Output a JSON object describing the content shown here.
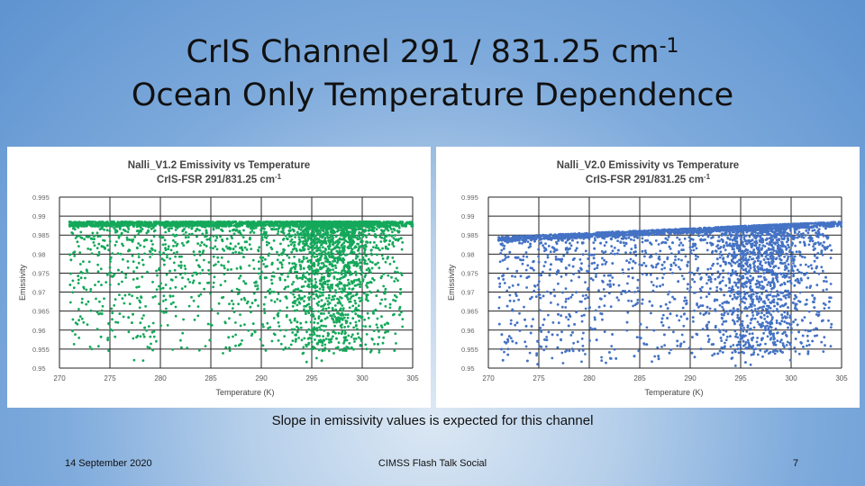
{
  "slide": {
    "title_line1": "CrIS Channel 291 / 831.25 cm",
    "title_sup": "-1",
    "title_line2": "Ocean Only Temperature Dependence",
    "caption": "Slope in emissivity values is expected for this channel",
    "footer_date": "14 September 2020",
    "footer_event": "CIMSS Flash Talk Social",
    "page_number": "7"
  },
  "chart_data": [
    {
      "type": "scatter",
      "title": "Nalli_V1.2 Emissivity vs Temperature",
      "subtitle": "CrIS-FSR 291/831.25 cm",
      "subtitle_sup": "-1",
      "xlabel": "Temperature (K)",
      "ylabel": "Emissivity",
      "xlim": [
        270,
        305
      ],
      "ylim": [
        0.95,
        0.995
      ],
      "xticks": [
        "270",
        "275",
        "280",
        "285",
        "290",
        "295",
        "300",
        "305"
      ],
      "yticks": [
        "0.95",
        "0.955",
        "0.96",
        "0.965",
        "0.97",
        "0.975",
        "0.98",
        "0.985",
        "0.99",
        "0.995"
      ],
      "grid": true,
      "color": "#14a85a",
      "series": [
        {
          "x_range": [
            271,
            305
          ],
          "y_max": 0.9885,
          "y_trend_slope_per_K": 0,
          "description": "dense band of ocean points at upper limit ~0.9885, scatter down to ~0.955, densest near 295-300 K"
        }
      ]
    },
    {
      "type": "scatter",
      "title": "Nalli_V2.0 Emissivity vs Temperature",
      "subtitle": "CrIS-FSR 291/831.25 cm",
      "subtitle_sup": "-1",
      "xlabel": "Temperature (K)",
      "ylabel": "Emissivity",
      "xlim": [
        270,
        305
      ],
      "ylim": [
        0.95,
        0.995
      ],
      "xticks": [
        "270",
        "275",
        "280",
        "285",
        "290",
        "295",
        "300",
        "305"
      ],
      "yticks": [
        "0.95",
        "0.955",
        "0.96",
        "0.965",
        "0.97",
        "0.975",
        "0.98",
        "0.985",
        "0.99",
        "0.995"
      ],
      "grid": true,
      "color": "#4472c4",
      "series": [
        {
          "x_range": [
            271,
            305
          ],
          "y_max_at_xmin": 0.9845,
          "y_max_at_xmax": 0.9885,
          "description": "upper envelope rises from ~0.9845 at 271 K to ~0.9885 at 305 K, scatter down to ~0.951"
        }
      ]
    }
  ]
}
